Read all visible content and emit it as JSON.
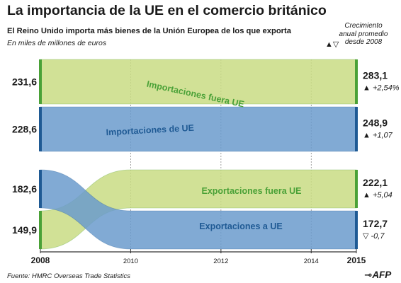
{
  "header": {
    "title": "La importancia de la UE en el comercio británico",
    "subtitle": "El Reino Unido importa más bienes de la Unión Europea de los que exporta",
    "units": "En miles de millones de euros",
    "growth_heading": "Crecimiento anual promedio desde 2008",
    "growth_marks": "▲▽"
  },
  "footer": {
    "source": "Fuente: HMRC Overseas Trade Statistics",
    "logo": "AFP"
  },
  "colors": {
    "eu": "#6b9bcd",
    "non_eu": "#c9dc84",
    "eu_dark": "#1f5a94",
    "non_eu_dark": "#4aa137"
  },
  "chart_data": [
    {
      "type": "area",
      "panel": "imports",
      "x": [
        2008,
        2010,
        2012,
        2014,
        2015
      ],
      "x_tick_labels": [
        "2008",
        "2010",
        "2012",
        "2014",
        "2015"
      ],
      "series": [
        {
          "name": "Importaciones fuera UE",
          "start_label": "231,6",
          "end_label": "283,1",
          "growth_label": "▲ +2,54%",
          "values": [
            231.6,
            258,
            270,
            265,
            283.1
          ]
        },
        {
          "name": "Importaciones de UE",
          "start_label": "228,6",
          "end_label": "248,9",
          "growth_label": "▲ +1,07",
          "values": [
            228.6,
            205,
            215,
            248,
            248.9
          ]
        }
      ]
    },
    {
      "type": "area",
      "panel": "exports",
      "x": [
        2008,
        2010,
        2012,
        2014,
        2015
      ],
      "x_tick_labels": [
        "2008",
        "2010",
        "2012",
        "2014",
        "2015"
      ],
      "series": [
        {
          "name": "Exportaciones fuera UE",
          "start_label": "149,9",
          "end_label": "222,1",
          "growth_label": "▲ +5,04",
          "values": [
            149.9,
            180,
            205,
            215,
            222.1
          ]
        },
        {
          "name": "Exportaciones a UE",
          "start_label": "182,6",
          "end_label": "172,7",
          "growth_label": "▽ -0,7",
          "values": [
            182.6,
            178,
            168,
            170,
            172.7
          ]
        }
      ]
    }
  ]
}
